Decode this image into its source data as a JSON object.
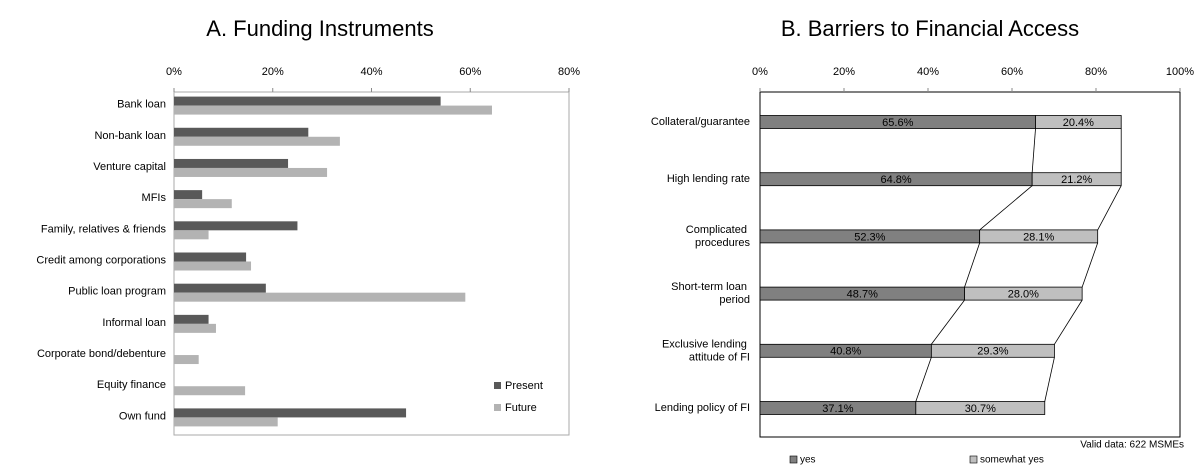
{
  "chart_data": [
    {
      "type": "bar",
      "orientation": "horizontal",
      "title": "A. Funding Instruments",
      "categories": [
        "Bank loan",
        "Non-bank loan",
        "Venture capital",
        "MFIs",
        "Family, relatives & friends",
        "Credit among corporations",
        "Public loan program",
        "Informal loan",
        "Corporate bond/debenture",
        "Equity finance",
        "Own fund"
      ],
      "series": [
        {
          "name": "Present",
          "color": "#595959",
          "values": [
            54,
            27.2,
            23.1,
            5.7,
            25,
            14.6,
            18.6,
            7,
            null,
            null,
            47
          ]
        },
        {
          "name": "Future",
          "color": "#b3b3b3",
          "values": [
            64.4,
            33.6,
            31,
            11.7,
            7,
            15.6,
            59,
            8.5,
            5,
            14.4,
            21
          ]
        }
      ],
      "xlim": [
        0,
        80
      ],
      "xticks": [
        {
          "value": 0,
          "label": "0%"
        },
        {
          "value": 20,
          "label": "20%"
        },
        {
          "value": 40,
          "label": "40%"
        },
        {
          "value": 60,
          "label": "60%"
        },
        {
          "value": 80,
          "label": "80%"
        }
      ],
      "legend": "lower right"
    },
    {
      "type": "stacked_bar",
      "orientation": "horizontal",
      "title": "B. Barriers to Financial Access",
      "categories": [
        "Collateral/guarantee",
        "High lending rate",
        "Complicated procedures",
        "Short-term loan period",
        "Exclusive lending attitude of FI",
        "Lending policy of FI"
      ],
      "series": [
        {
          "name": "yes",
          "color": "#808080",
          "values": [
            65.6,
            64.8,
            52.3,
            48.7,
            40.8,
            37.1
          ],
          "value_labels": [
            "65.6%",
            "64.8%",
            "52.3%",
            "48.7%",
            "40.8%",
            "37.1%"
          ]
        },
        {
          "name": "somewhat yes",
          "color": "#bfbfbf",
          "values": [
            20.4,
            21.2,
            28.1,
            28.0,
            29.3,
            30.7
          ],
          "value_labels": [
            "20.4%",
            "21.2%",
            "28.1%",
            "28.0%",
            "29.3%",
            "30.7%"
          ]
        }
      ],
      "xlim": [
        0,
        100
      ],
      "xticks": [
        {
          "value": 0,
          "label": "0%"
        },
        {
          "value": 20,
          "label": "20%"
        },
        {
          "value": 40,
          "label": "40%"
        },
        {
          "value": 60,
          "label": "60%"
        },
        {
          "value": 80,
          "label": "80%"
        },
        {
          "value": 100,
          "label": "100%"
        }
      ],
      "annotation": "Valid data: 622 MSMEs",
      "legend": "bottom"
    }
  ]
}
